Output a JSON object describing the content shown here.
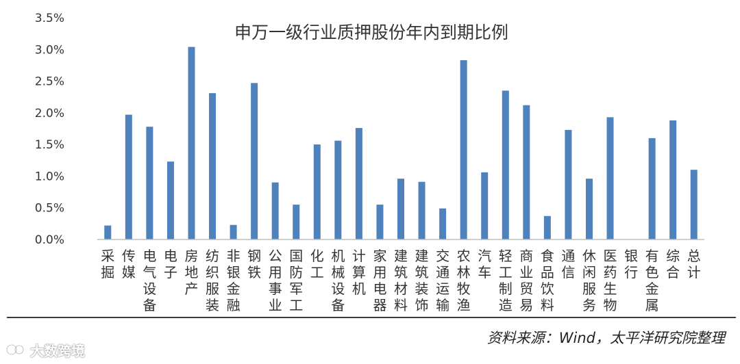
{
  "chart_data": {
    "type": "bar",
    "title": "申万一级行业质押股份年内到期比例",
    "xlabel": "",
    "ylabel": "",
    "ylim": [
      0,
      3.5
    ],
    "yticks": [
      "0.0%",
      "0.5%",
      "1.0%",
      "1.5%",
      "2.0%",
      "2.5%",
      "3.0%",
      "3.5%"
    ],
    "grid": false,
    "bar_color": "#4f81bd",
    "categories": [
      "采掘",
      "传媒",
      "电气设备",
      "电子",
      "房地产",
      "纺织服装",
      "非银金融",
      "钢铁",
      "公用事业",
      "国防军工",
      "化工",
      "机械设备",
      "计算机",
      "家用电器",
      "建筑材料",
      "建筑装饰",
      "交通运输",
      "农林牧渔",
      "汽车",
      "轻工制造",
      "商业贸易",
      "食品饮料",
      "通信",
      "休闲服务",
      "医药生物",
      "银行",
      "有色金属",
      "综合",
      "总计"
    ],
    "values": [
      0.22,
      1.97,
      1.78,
      1.23,
      3.04,
      2.31,
      0.23,
      2.47,
      0.9,
      0.55,
      1.5,
      1.56,
      1.76,
      0.55,
      0.96,
      0.91,
      0.49,
      2.83,
      1.06,
      2.35,
      2.12,
      0.37,
      1.73,
      0.96,
      1.93,
      0.0,
      1.6,
      1.88,
      1.1
    ]
  },
  "footer": {
    "source": "资料来源：Wind，太平洋研究院整理"
  },
  "watermark": {
    "text": "大数跨境"
  }
}
